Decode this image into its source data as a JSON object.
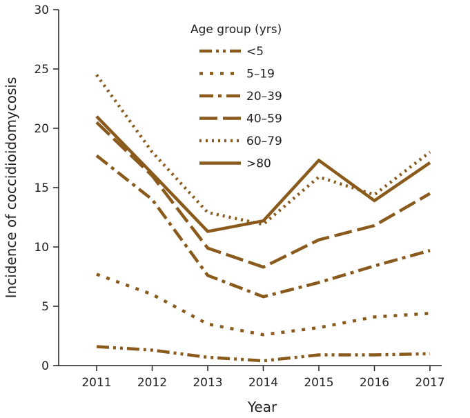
{
  "chart_data": {
    "type": "line",
    "xlabel": "Year",
    "ylabel": "Incidence of coccidioidomycosis",
    "x": [
      2011,
      2012,
      2013,
      2014,
      2015,
      2016,
      2017
    ],
    "ylim": [
      0,
      30
    ],
    "yticks": [
      0,
      5,
      10,
      15,
      20,
      25,
      30
    ],
    "grid": false,
    "legend": {
      "title": "Age group (yrs)",
      "placement": "top-center"
    },
    "series_color": "#8a5a1c",
    "series": [
      {
        "name": "<5",
        "style": "dash-dot-dot",
        "values": [
          1.6,
          1.3,
          0.7,
          0.4,
          0.9,
          0.9,
          1.0
        ]
      },
      {
        "name": "5–19",
        "style": "short-dash",
        "values": [
          7.7,
          6.0,
          3.5,
          2.6,
          3.2,
          4.1,
          4.4
        ]
      },
      {
        "name": "20–39",
        "style": "dash-dot",
        "values": [
          17.7,
          14.0,
          7.6,
          5.8,
          7.0,
          8.4,
          9.7
        ]
      },
      {
        "name": "40–59",
        "style": "long-dash",
        "values": [
          20.5,
          16.0,
          9.9,
          8.3,
          10.6,
          11.8,
          14.5
        ]
      },
      {
        "name": "60–79",
        "style": "dotted",
        "values": [
          24.5,
          18.0,
          12.9,
          11.9,
          15.9,
          14.4,
          18.0
        ]
      },
      {
        "name": ">80",
        "style": "solid",
        "values": [
          21.0,
          16.2,
          11.3,
          12.2,
          17.3,
          13.9,
          17.1
        ]
      }
    ]
  }
}
